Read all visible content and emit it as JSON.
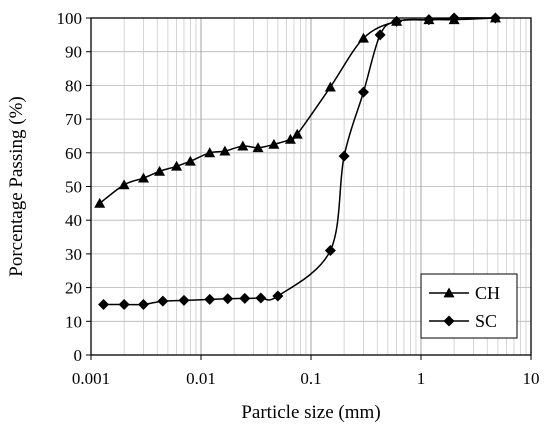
{
  "chart_data": {
    "type": "line",
    "xlabel": "Particle size (mm)",
    "ylabel": "Porcentage Passing (%)",
    "x_scale": "log",
    "xlim": [
      0.001,
      10
    ],
    "ylim": [
      0,
      100
    ],
    "x_tick_labels": [
      "0.001",
      "0.01",
      "0.1",
      "1",
      "10"
    ],
    "y_tick_labels": [
      "0",
      "10",
      "20",
      "30",
      "40",
      "50",
      "60",
      "70",
      "80",
      "90",
      "100"
    ],
    "grid": true,
    "legend_position": "bottom-right",
    "series": [
      {
        "name": "CH",
        "marker": "triangle",
        "x": [
          0.0012,
          0.002,
          0.003,
          0.0042,
          0.006,
          0.008,
          0.012,
          0.0165,
          0.024,
          0.033,
          0.046,
          0.065,
          0.075,
          0.15,
          0.3,
          0.6,
          1.18,
          2.0,
          4.75
        ],
        "y": [
          45,
          50.5,
          52.5,
          54.5,
          56,
          57.5,
          60,
          60.5,
          62,
          61.5,
          62.5,
          64,
          65.5,
          79.5,
          94,
          99,
          99.5,
          99.5,
          100
        ]
      },
      {
        "name": "SC",
        "marker": "diamond",
        "x": [
          0.0013,
          0.002,
          0.003,
          0.0045,
          0.007,
          0.012,
          0.0175,
          0.025,
          0.035,
          0.05,
          0.15,
          0.2,
          0.3,
          0.425,
          0.6,
          1.18,
          2.0,
          4.75
        ],
        "y": [
          15,
          15,
          15,
          16,
          16.2,
          16.5,
          16.7,
          16.8,
          16.9,
          17.5,
          31,
          59,
          78,
          95,
          99,
          99.5,
          100,
          100
        ]
      }
    ]
  }
}
